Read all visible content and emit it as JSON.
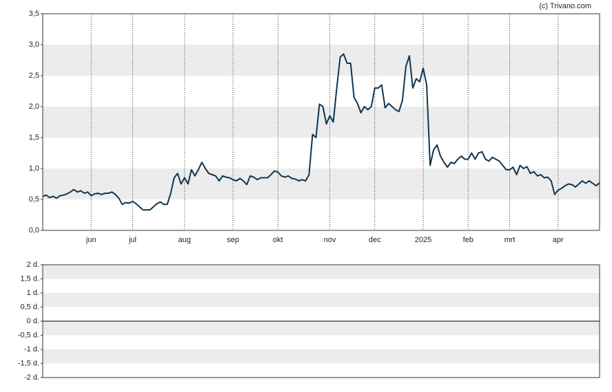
{
  "chart_data": [
    {
      "type": "line",
      "source": "(c) Trivano.com",
      "categories": [
        null,
        null,
        null,
        null,
        null,
        null,
        null,
        null,
        null,
        null,
        null,
        null,
        null,
        null,
        "jun",
        null,
        null,
        null,
        null,
        null,
        null,
        null,
        null,
        null,
        null,
        null,
        "jul",
        null,
        null,
        null,
        null,
        null,
        null,
        null,
        null,
        null,
        null,
        null,
        null,
        null,
        null,
        "aug",
        null,
        null,
        null,
        null,
        null,
        null,
        null,
        null,
        null,
        null,
        null,
        null,
        null,
        "sep",
        null,
        null,
        null,
        null,
        null,
        null,
        null,
        null,
        null,
        null,
        null,
        null,
        "okt",
        null,
        null,
        null,
        null,
        null,
        null,
        null,
        null,
        null,
        null,
        null,
        null,
        null,
        null,
        "nov",
        null,
        null,
        null,
        null,
        null,
        null,
        null,
        null,
        null,
        null,
        null,
        null,
        "dec",
        null,
        null,
        null,
        null,
        null,
        null,
        null,
        null,
        null,
        null,
        null,
        null,
        null,
        "2025",
        null,
        null,
        null,
        null,
        null,
        null,
        null,
        null,
        null,
        null,
        null,
        null,
        "feb",
        null,
        null,
        null,
        null,
        null,
        null,
        null,
        null,
        null,
        null,
        null,
        "mrt",
        null,
        null,
        null,
        null,
        null,
        null,
        null,
        null,
        null,
        null,
        null,
        null,
        null,
        "apr",
        null,
        null,
        null,
        null,
        null,
        null,
        null,
        null,
        null,
        null,
        null,
        null
      ],
      "series": [
        {
          "color": "#0d3550",
          "values": [
            0.55,
            0.57,
            0.53,
            0.55,
            0.52,
            0.56,
            0.57,
            0.59,
            0.62,
            0.66,
            0.62,
            0.64,
            0.6,
            0.62,
            0.56,
            0.59,
            0.6,
            0.58,
            0.6,
            0.6,
            0.62,
            0.58,
            0.52,
            0.42,
            0.45,
            0.44,
            0.47,
            0.43,
            0.38,
            0.33,
            0.33,
            0.33,
            0.38,
            0.43,
            0.46,
            0.42,
            0.42,
            0.6,
            0.85,
            0.92,
            0.75,
            0.85,
            0.75,
            0.98,
            0.88,
            0.98,
            1.1,
            1.0,
            0.92,
            0.9,
            0.88,
            0.8,
            0.88,
            0.86,
            0.85,
            0.82,
            0.8,
            0.84,
            0.8,
            0.74,
            0.88,
            0.86,
            0.82,
            0.85,
            0.85,
            0.85,
            0.9,
            0.96,
            0.94,
            0.88,
            0.86,
            0.88,
            0.84,
            0.83,
            0.8,
            0.82,
            0.8,
            0.9,
            1.55,
            1.5,
            2.04,
            2.0,
            1.72,
            1.85,
            1.75,
            2.3,
            2.8,
            2.85,
            2.7,
            2.7,
            2.15,
            2.05,
            1.9,
            2.0,
            1.95,
            2.0,
            2.3,
            2.3,
            2.35,
            1.98,
            2.05,
            2.0,
            1.95,
            1.92,
            2.1,
            2.65,
            2.82,
            2.3,
            2.45,
            2.4,
            2.62,
            2.35,
            1.05,
            1.3,
            1.38,
            1.2,
            1.1,
            1.02,
            1.1,
            1.08,
            1.15,
            1.2,
            1.15,
            1.15,
            1.25,
            1.15,
            1.25,
            1.27,
            1.15,
            1.12,
            1.18,
            1.15,
            1.12,
            1.05,
            0.98,
            0.98,
            1.02,
            0.9,
            1.05,
            1.0,
            1.03,
            0.92,
            0.95,
            0.88,
            0.9,
            0.85,
            0.86,
            0.8,
            0.58,
            0.65,
            0.68,
            0.72,
            0.75,
            0.74,
            0.7,
            0.75,
            0.8,
            0.76,
            0.8,
            0.76,
            0.72,
            0.77
          ]
        }
      ],
      "ylim": [
        0,
        3.5
      ],
      "yticks": [
        {
          "value": 0,
          "label": "0,0"
        },
        {
          "value": 0.5,
          "label": "0,5"
        },
        {
          "value": 1,
          "label": "1,0"
        },
        {
          "value": 1.5,
          "label": "1,5"
        },
        {
          "value": 2,
          "label": "2,0"
        },
        {
          "value": 2.5,
          "label": "2,5"
        },
        {
          "value": 3,
          "label": "3,0"
        },
        {
          "value": 3.5,
          "label": "3,5"
        }
      ],
      "grid": true
    },
    {
      "type": "line",
      "ylim": [
        -2,
        2
      ],
      "yticks": [
        {
          "value": 2,
          "label": "2 d."
        },
        {
          "value": 1.5,
          "label": "1,5 d."
        },
        {
          "value": 1,
          "label": "1 d."
        },
        {
          "value": 0.5,
          "label": "0,5 d."
        },
        {
          "value": 0,
          "label": "0 d."
        },
        {
          "value": -0.5,
          "label": "-0,5 d."
        },
        {
          "value": -1,
          "label": "-1 d."
        },
        {
          "value": -1.5,
          "label": "-1,5 d."
        },
        {
          "value": -2,
          "label": "-2 d."
        }
      ],
      "grid": true
    }
  ]
}
